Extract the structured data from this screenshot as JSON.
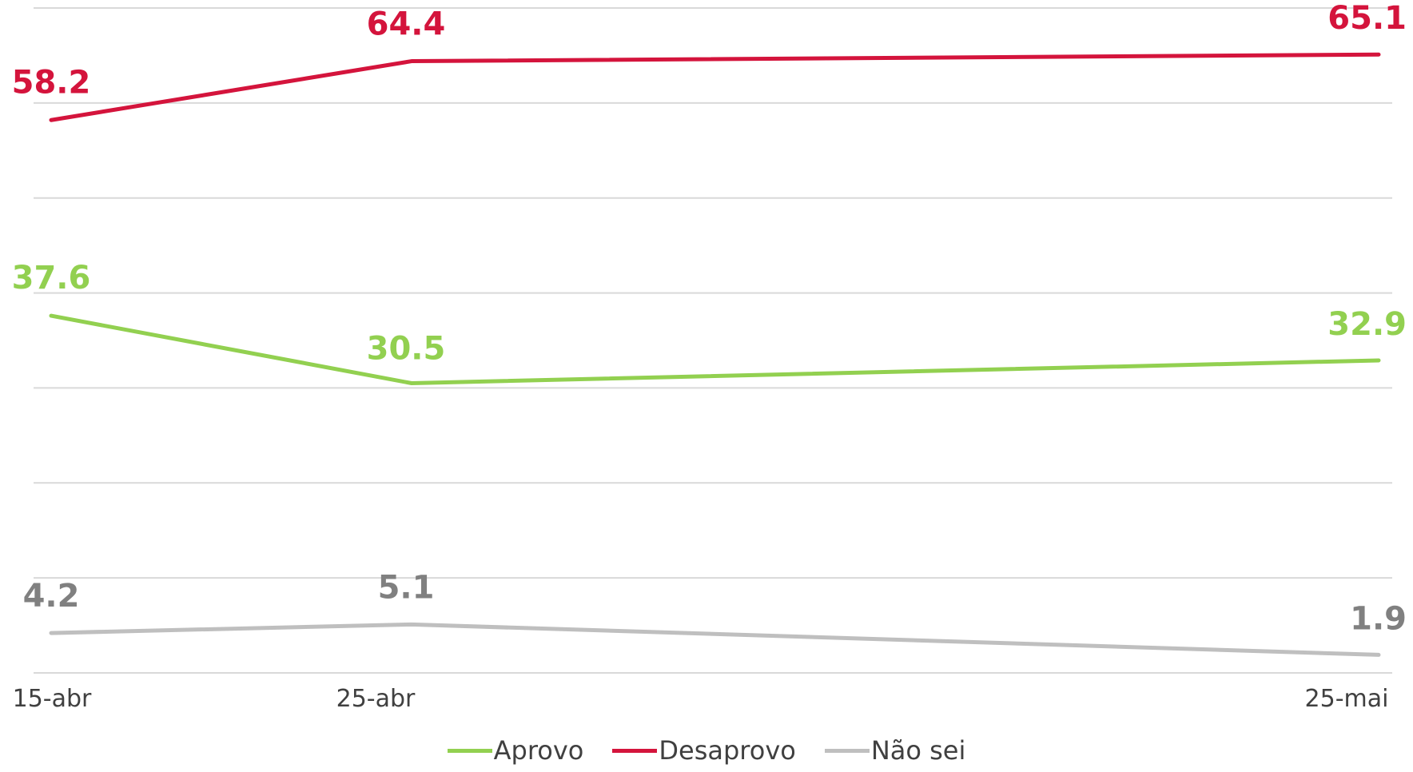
{
  "chart_data": {
    "type": "line",
    "x": [
      "15-abr",
      "25-abr",
      "25-mai"
    ],
    "ylim": [
      0,
      70
    ],
    "grid": true,
    "legend_position": "bottom",
    "series": [
      {
        "name": "Aprovo",
        "color": "#92d050",
        "values": [
          37.6,
          30.5,
          32.9
        ]
      },
      {
        "name": "Desaprovo",
        "color": "#d4143c",
        "values": [
          58.2,
          64.4,
          65.1
        ]
      },
      {
        "name": "Não sei",
        "color": "#bfbfbf",
        "label_color": "#808080",
        "values": [
          4.2,
          5.1,
          1.9
        ]
      }
    ],
    "data_labels": [
      [
        "37.6",
        "30.5",
        "32.9"
      ],
      [
        "58.2",
        "64.4",
        "65.1"
      ],
      [
        "4.2",
        "5.1",
        "1.9"
      ]
    ]
  }
}
